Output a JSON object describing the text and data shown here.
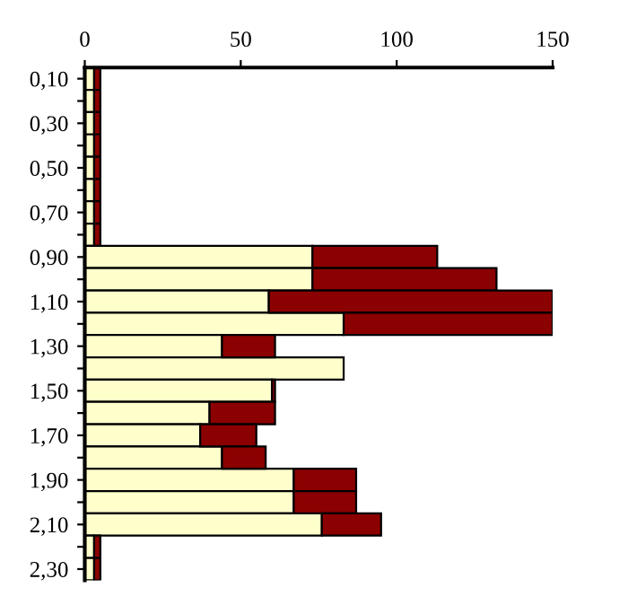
{
  "chart_data": {
    "type": "bar",
    "orientation": "horizontal",
    "stacked": true,
    "categories": [
      "0,10",
      null,
      "0,30",
      null,
      "0,50",
      null,
      "0,70",
      null,
      "0,90",
      null,
      "1,10",
      null,
      "1,30",
      null,
      "1,50",
      null,
      "1,70",
      null,
      "1,90",
      null,
      "2,10",
      null,
      "2,30"
    ],
    "series": [
      {
        "color": "#ffffcc",
        "values": [
          3,
          3,
          3,
          3,
          3,
          3,
          3,
          3,
          73,
          73,
          59,
          83,
          44,
          83,
          60,
          40,
          37,
          44,
          67,
          67,
          76,
          3,
          3
        ]
      },
      {
        "color": "#8b0000",
        "values": [
          2,
          2,
          2,
          2,
          2,
          2,
          2,
          2,
          40,
          59,
          91,
          67,
          17,
          null,
          1,
          21,
          18,
          14,
          20,
          20,
          19,
          2,
          2
        ]
      }
    ],
    "xlim": [
      0,
      150
    ],
    "xticks": [
      0,
      50,
      100,
      150
    ],
    "grid": false,
    "legend": false
  }
}
